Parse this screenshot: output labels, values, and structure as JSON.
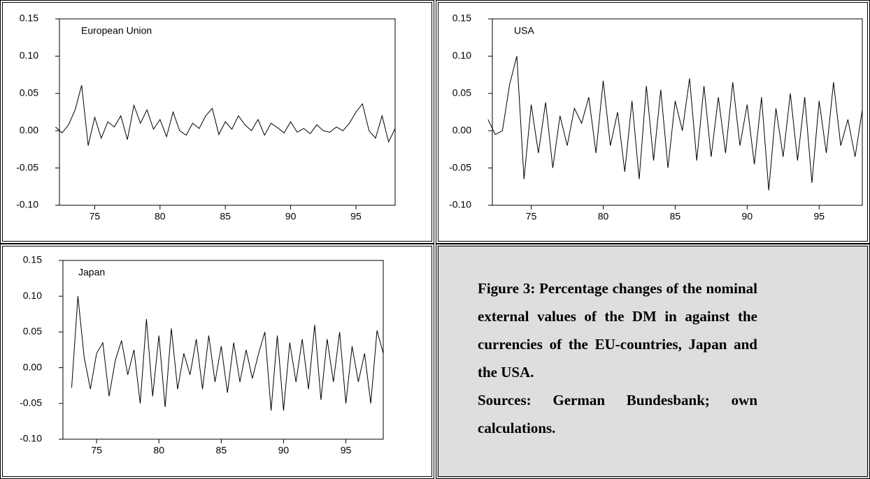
{
  "chart_data": [
    {
      "type": "line",
      "x": [
        72,
        72.5,
        73,
        73.5,
        74,
        74.5,
        75,
        75.5,
        76,
        76.5,
        77,
        77.5,
        78,
        78.5,
        79,
        79.5,
        80,
        80.5,
        81,
        81.5,
        82,
        82.5,
        83,
        83.5,
        84,
        84.5,
        85,
        85.5,
        86,
        86.5,
        87,
        87.5,
        88,
        88.5,
        89,
        89.5,
        90,
        90.5,
        91,
        91.5,
        92,
        92.5,
        93,
        93.5,
        94,
        94.5,
        95,
        95.5,
        96,
        96.5,
        97,
        97.5,
        98
      ],
      "series": [
        {
          "name": "European Union",
          "color": "#000000",
          "values": [
            0.005,
            -0.003,
            0.008,
            0.028,
            0.061,
            -0.02,
            0.018,
            -0.01,
            0.012,
            0.005,
            0.02,
            -0.012,
            0.034,
            0.01,
            0.028,
            0.002,
            0.015,
            -0.008,
            0.025,
            0.0,
            -0.006,
            0.01,
            0.003,
            0.02,
            0.03,
            -0.005,
            0.012,
            0.002,
            0.02,
            0.008,
            0.0,
            0.015,
            -0.006,
            0.01,
            0.004,
            -0.003,
            0.012,
            -0.002,
            0.003,
            -0.004,
            0.008,
            0.0,
            -0.002,
            0.005,
            0.0,
            0.01,
            0.025,
            0.036,
            0.0,
            -0.01,
            0.02,
            -0.015,
            0.003
          ]
        }
      ],
      "xlim": [
        72.3,
        98
      ],
      "xticks": [
        75,
        80,
        85,
        90,
        95
      ],
      "ylim": [
        -0.1,
        0.15
      ],
      "yticks": [
        {
          "value": -0.1,
          "label": "-0.10"
        },
        -0.05,
        {
          "value": 0,
          "label": "0.00"
        },
        0.05,
        {
          "value": 0.1,
          "label": "0.10"
        },
        0.15
      ]
    },
    {
      "type": "line",
      "x": [
        72,
        72.5,
        73,
        73.5,
        74,
        74.5,
        75,
        75.5,
        76,
        76.5,
        77,
        77.5,
        78,
        78.5,
        79,
        79.5,
        80,
        80.5,
        81,
        81.5,
        82,
        82.5,
        83,
        83.5,
        84,
        84.5,
        85,
        85.5,
        86,
        86.5,
        87,
        87.5,
        88,
        88.5,
        89,
        89.5,
        90,
        90.5,
        91,
        91.5,
        92,
        92.5,
        93,
        93.5,
        94,
        94.5,
        95,
        95.5,
        96,
        96.5,
        97,
        97.5,
        98
      ],
      "series": [
        {
          "name": "USA",
          "color": "#000000",
          "values": [
            0.015,
            -0.005,
            0.0,
            0.062,
            0.1,
            -0.065,
            0.035,
            -0.03,
            0.038,
            -0.05,
            0.02,
            -0.02,
            0.03,
            0.01,
            0.045,
            -0.03,
            0.067,
            -0.02,
            0.025,
            -0.055,
            0.04,
            -0.065,
            0.06,
            -0.04,
            0.055,
            -0.05,
            0.04,
            0.0,
            0.07,
            -0.04,
            0.06,
            -0.035,
            0.045,
            -0.03,
            0.065,
            -0.02,
            0.035,
            -0.045,
            0.045,
            -0.08,
            0.03,
            -0.035,
            0.05,
            -0.04,
            0.045,
            -0.07,
            0.04,
            -0.03,
            0.065,
            -0.02,
            0.015,
            -0.035,
            0.028
          ]
        }
      ],
      "xlim": [
        72.3,
        98
      ],
      "xticks": [
        75,
        80,
        85,
        90,
        95
      ],
      "ylim": [
        -0.1,
        0.15
      ],
      "yticks": [
        {
          "value": -0.1,
          "label": "-0.10"
        },
        -0.05,
        {
          "value": 0,
          "label": "0.00"
        },
        0.05,
        {
          "value": 0.1,
          "label": "0.10"
        },
        0.15
      ]
    },
    {
      "type": "line",
      "x": [
        73,
        73.5,
        74,
        74.5,
        75,
        75.5,
        76,
        76.5,
        77,
        77.5,
        78,
        78.5,
        79,
        79.5,
        80,
        80.5,
        81,
        81.5,
        82,
        82.5,
        83,
        83.5,
        84,
        84.5,
        85,
        85.5,
        86,
        86.5,
        87,
        87.5,
        88,
        88.5,
        89,
        89.5,
        90,
        90.5,
        91,
        91.5,
        92,
        92.5,
        93,
        93.5,
        94,
        94.5,
        95,
        95.5,
        96,
        96.5,
        97,
        97.5,
        98
      ],
      "series": [
        {
          "name": "Japan",
          "color": "#000000",
          "values": [
            -0.028,
            0.1,
            0.015,
            -0.03,
            0.02,
            0.035,
            -0.04,
            0.01,
            0.038,
            -0.01,
            0.025,
            -0.05,
            0.068,
            -0.04,
            0.045,
            -0.055,
            0.055,
            -0.03,
            0.02,
            -0.01,
            0.04,
            -0.03,
            0.045,
            -0.02,
            0.03,
            -0.035,
            0.035,
            -0.02,
            0.025,
            -0.015,
            0.02,
            0.05,
            -0.06,
            0.045,
            -0.06,
            0.035,
            -0.02,
            0.04,
            -0.03,
            0.06,
            -0.045,
            0.04,
            -0.02,
            0.05,
            -0.05,
            0.03,
            -0.02,
            0.02,
            -0.05,
            0.052,
            0.02
          ]
        }
      ],
      "xlim": [
        72.3,
        98
      ],
      "xticks": [
        75,
        80,
        85,
        90,
        95
      ],
      "ylim": [
        -0.1,
        0.15
      ],
      "yticks": [
        {
          "value": -0.1,
          "label": "-0.10"
        },
        -0.05,
        {
          "value": 0,
          "label": "0.00"
        },
        0.05,
        {
          "value": 0.1,
          "label": "0.10"
        },
        0.15
      ]
    }
  ],
  "caption": {
    "text": "Figure 3: Percentage changes of the nominal  external values of the DM in against the currencies of the EU-countries, Japan and the USA.",
    "source": "Sources: German Bundesbank; own calculations."
  }
}
